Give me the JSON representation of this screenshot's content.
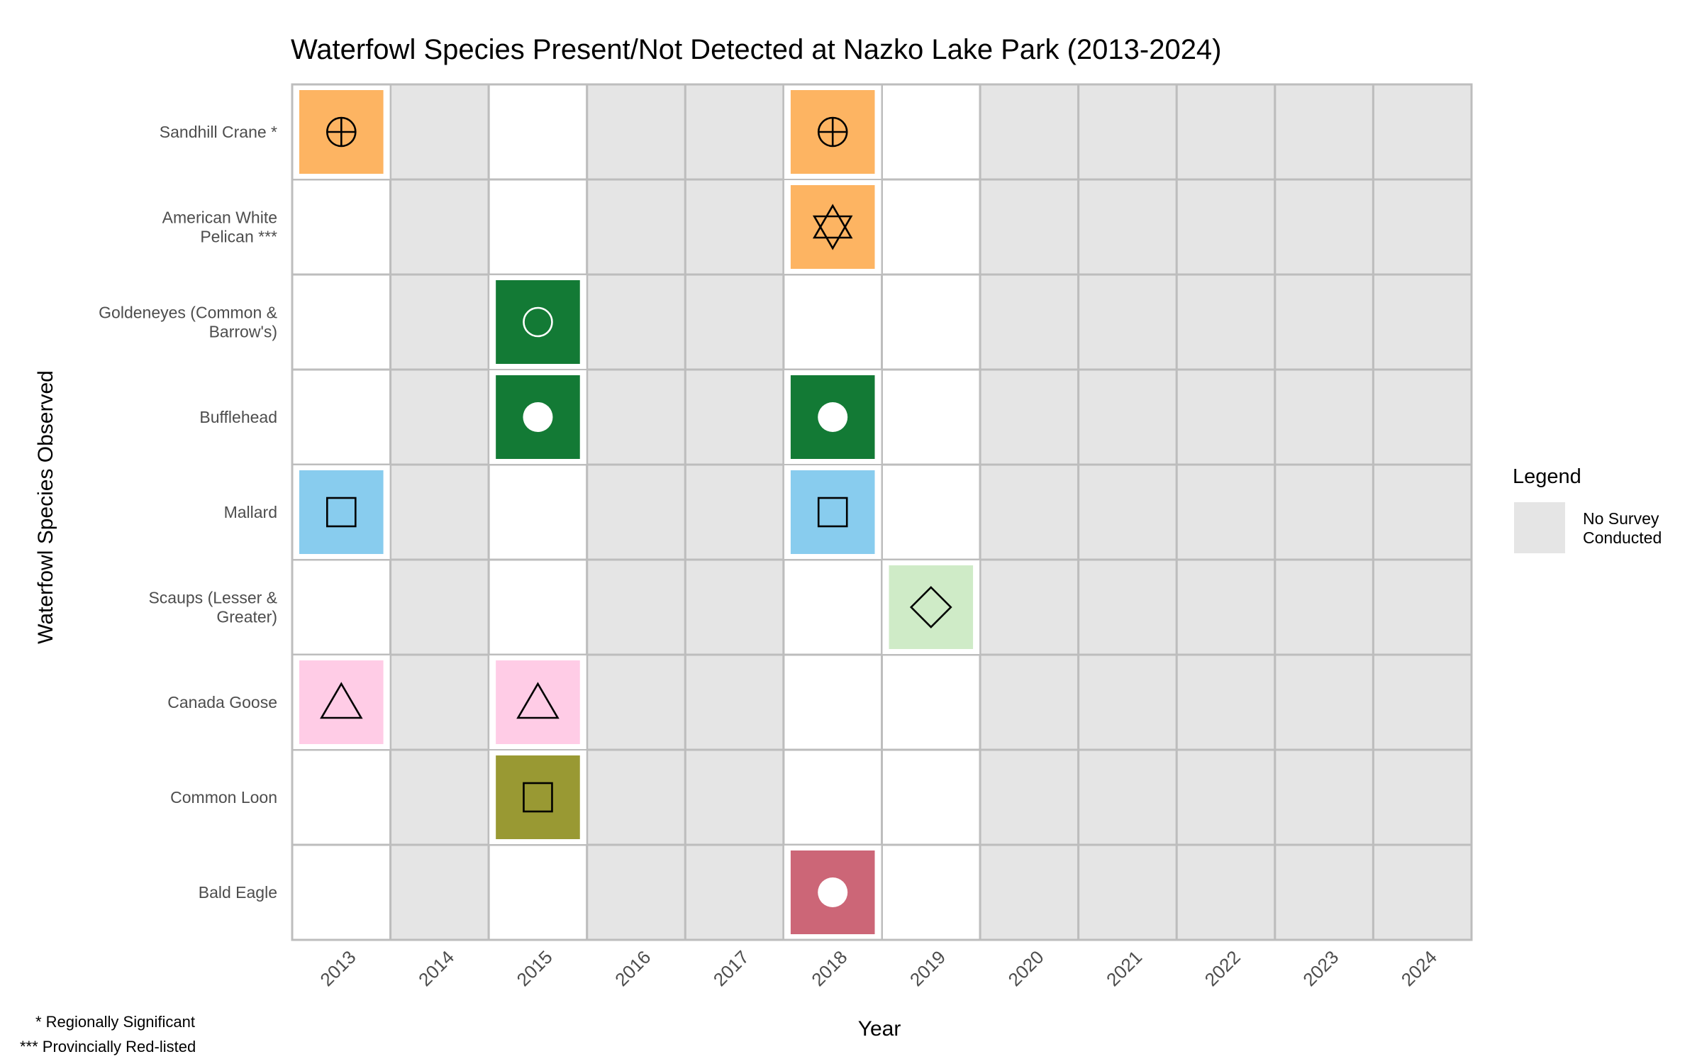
{
  "chart_data": {
    "type": "heatmap",
    "title": "Waterfowl Species Present/Not Detected at Nazko Lake Park (2013-2024)",
    "xlabel": "Year",
    "ylabel": "Waterfowl Species Observed",
    "years": [
      "2013",
      "2014",
      "2015",
      "2016",
      "2017",
      "2018",
      "2019",
      "2020",
      "2021",
      "2022",
      "2023",
      "2024"
    ],
    "no_survey_years": [
      "2014",
      "2016",
      "2017",
      "2020",
      "2021",
      "2022",
      "2023",
      "2024"
    ],
    "species": [
      {
        "label": [
          "Sandhill Crane *"
        ],
        "color": "#FDB462",
        "symbol": "circle-plus",
        "present": [
          "2013",
          "2018"
        ]
      },
      {
        "label": [
          "American White",
          "Pelican ***"
        ],
        "color": "#FDB462",
        "symbol": "star-of-david",
        "present": [
          "2018"
        ]
      },
      {
        "label": [
          "Goldeneyes (Common &",
          "Barrow's)"
        ],
        "color": "#137A35",
        "symbol": "circle-open-white",
        "present": [
          "2015"
        ]
      },
      {
        "label": [
          "Bufflehead"
        ],
        "color": "#137A35",
        "symbol": "circle-filled-white",
        "present": [
          "2015",
          "2018"
        ]
      },
      {
        "label": [
          "Mallard"
        ],
        "color": "#88CCEE",
        "symbol": "square-open",
        "present": [
          "2013",
          "2018"
        ]
      },
      {
        "label": [
          "Scaups (Lesser &",
          "Greater)"
        ],
        "color": "#CFEBC7",
        "symbol": "diamond-open",
        "present": [
          "2019"
        ]
      },
      {
        "label": [
          "Canada Goose"
        ],
        "color": "#FFCCE6",
        "symbol": "triangle-open",
        "present": [
          "2013",
          "2015"
        ]
      },
      {
        "label": [
          "Common Loon"
        ],
        "color": "#999933",
        "symbol": "square-open",
        "present": [
          "2015"
        ]
      },
      {
        "label": [
          "Bald Eagle"
        ],
        "color": "#CC6677",
        "symbol": "circle-filled-white",
        "present": [
          "2018"
        ]
      }
    ],
    "no_survey_color": "#E5E5E5",
    "grid_color": "#BDBDBD",
    "legend": {
      "title": "Legend",
      "entries": [
        {
          "label": [
            "No Survey",
            "Conducted"
          ],
          "color": "#E5E5E5"
        }
      ],
      "position": "right"
    },
    "footnotes": [
      "* Regionally Significant",
      "*** Provincially Red-listed"
    ]
  }
}
